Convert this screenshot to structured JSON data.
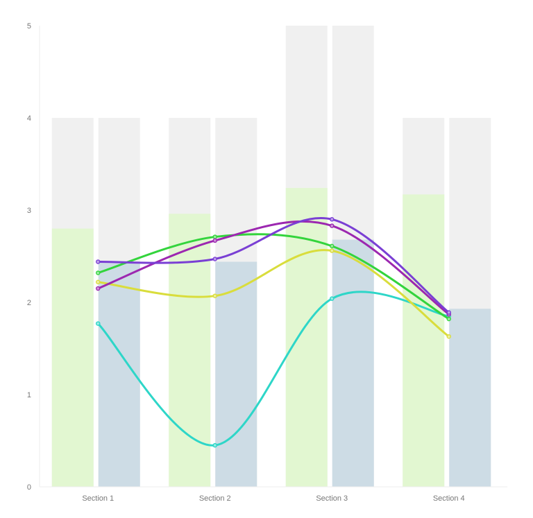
{
  "chart_data": {
    "type": "bar",
    "title": "",
    "xlabel": "",
    "ylabel": "",
    "ylim": [
      0,
      5
    ],
    "yticks": [
      0,
      1,
      2,
      3,
      4,
      5
    ],
    "grid": false,
    "legend": null,
    "categories": [
      "Section 1",
      "Section 2",
      "Section 3",
      "Section 4"
    ],
    "bar_series": [
      {
        "name": "green-bar",
        "color": "#e2f7d1",
        "background_color": "#f0f0f0",
        "max": [
          4,
          4,
          5,
          4
        ],
        "values": [
          2.8,
          2.96,
          3.24,
          3.17
        ]
      },
      {
        "name": "blue-bar",
        "color": "#cddce5",
        "background_color": "#f0f0f0",
        "max": [
          4,
          4,
          5,
          4
        ],
        "values": [
          2.44,
          2.44,
          2.68,
          1.93
        ]
      }
    ],
    "line_series": [
      {
        "name": "cyan",
        "color": "#2ed6c8",
        "values": [
          1.77,
          0.45,
          2.04,
          1.85
        ]
      },
      {
        "name": "yellow",
        "color": "#d9dd3c",
        "values": [
          2.22,
          2.07,
          2.56,
          1.63
        ]
      },
      {
        "name": "green",
        "color": "#33d43c",
        "values": [
          2.32,
          2.71,
          2.61,
          1.82
        ]
      },
      {
        "name": "purple",
        "color": "#9c27b0",
        "values": [
          2.15,
          2.67,
          2.83,
          1.87
        ]
      },
      {
        "name": "violet",
        "color": "#7a3fd4",
        "values": [
          2.44,
          2.47,
          2.9,
          1.89
        ]
      }
    ]
  },
  "axis": {
    "color": "#eeeeee",
    "label_color": "#777777"
  }
}
